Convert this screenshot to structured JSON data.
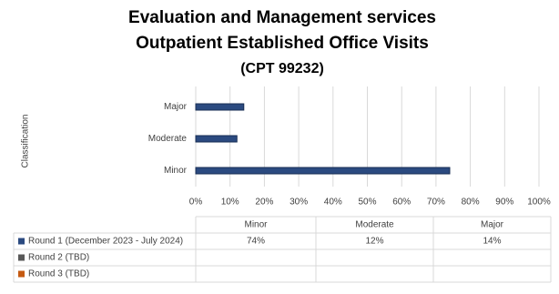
{
  "chart_data": {
    "type": "bar",
    "orientation": "horizontal",
    "title": [
      "Evaluation and Management services",
      "Outpatient Established Office Visits",
      "(CPT 99232)"
    ],
    "y_label": "Classification",
    "categories": [
      "Minor",
      "Moderate",
      "Major"
    ],
    "series": [
      {
        "name": "Round 1 (December 2023 - July 2024)",
        "color": "#2b4a80",
        "values": [
          74,
          12,
          14
        ],
        "value_labels": [
          "74%",
          "12%",
          "14%"
        ]
      },
      {
        "name": "Round 2 (TBD)",
        "color": "#595959",
        "values": [
          null,
          null,
          null
        ]
      },
      {
        "name": "Round 3 (TBD)",
        "color": "#c55a11",
        "values": [
          null,
          null,
          null
        ]
      }
    ],
    "xlim": [
      0,
      100
    ],
    "xticks": [
      {
        "value": 0,
        "label": "0%"
      },
      {
        "value": 10,
        "label": "10%"
      },
      {
        "value": 20,
        "label": "20%"
      },
      {
        "value": 30,
        "label": "30%"
      },
      {
        "value": 40,
        "label": "40%"
      },
      {
        "value": 50,
        "label": "50%"
      },
      {
        "value": 60,
        "label": "60%"
      },
      {
        "value": 70,
        "label": "70%"
      },
      {
        "value": 80,
        "label": "80%"
      },
      {
        "value": 90,
        "label": "90%"
      },
      {
        "value": 100,
        "label": "100%"
      }
    ],
    "grid": true,
    "data_table": true
  }
}
